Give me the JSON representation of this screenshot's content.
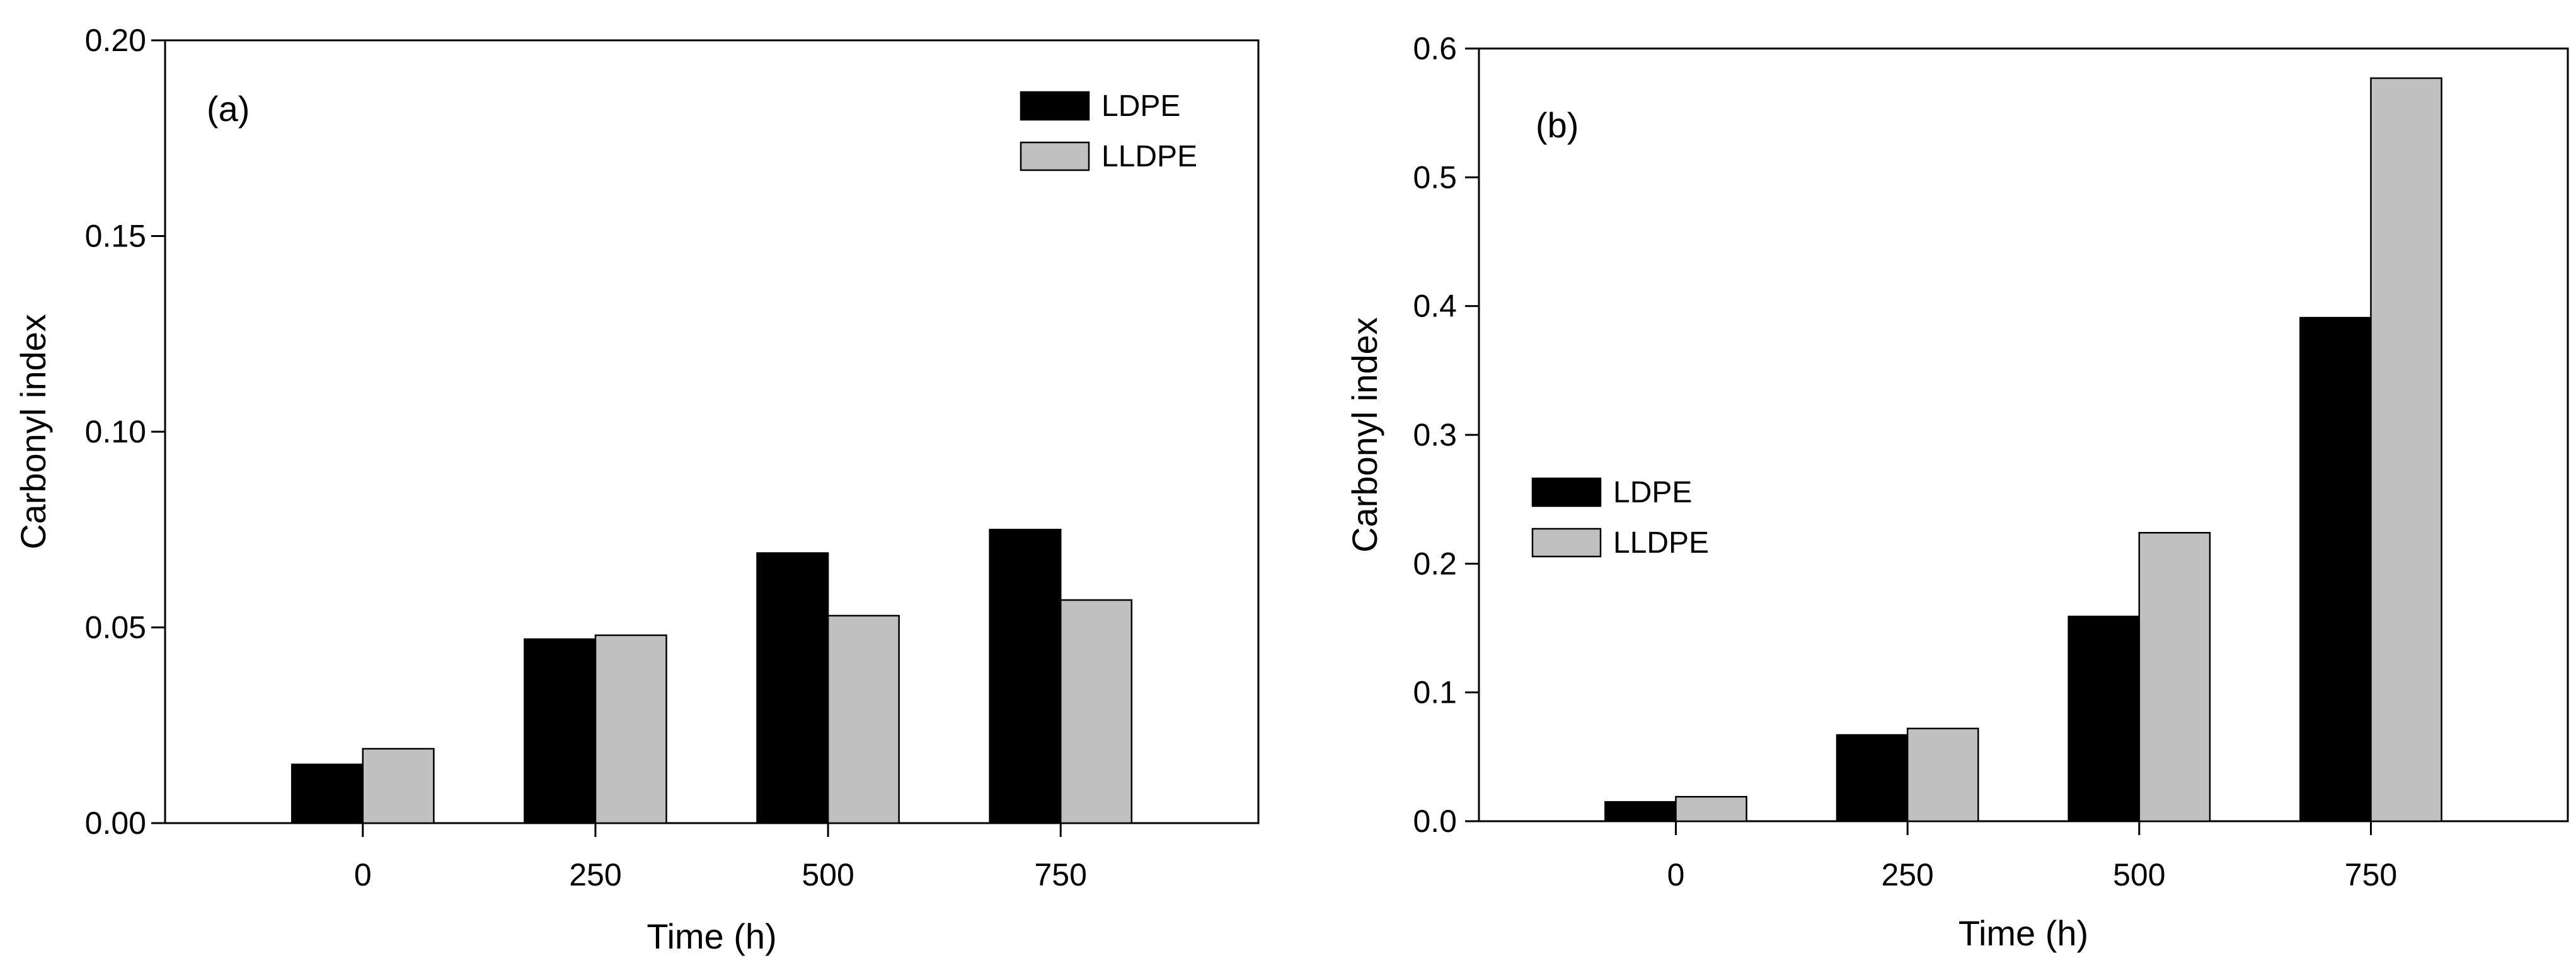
{
  "chart_data": [
    {
      "panel_label": "(a)",
      "type": "bar",
      "categories": [
        "0",
        "250",
        "500",
        "750"
      ],
      "series": [
        {
          "name": "LDPE",
          "color": "#000000",
          "values": [
            0.015,
            0.047,
            0.069,
            0.075
          ]
        },
        {
          "name": "LLDPE",
          "color": "#c0c0c0",
          "values": [
            0.019,
            0.048,
            0.053,
            0.057
          ]
        }
      ],
      "xlabel": "Time (h)",
      "ylabel": "Carbonyl index",
      "ylim": [
        0,
        0.2
      ],
      "yticks": [
        "0.00",
        "0.05",
        "0.10",
        "0.15",
        "0.20"
      ],
      "legend": "top-right",
      "grid": false
    },
    {
      "panel_label": "(b)",
      "type": "bar",
      "categories": [
        "0",
        "250",
        "500",
        "750"
      ],
      "series": [
        {
          "name": "LDPE",
          "color": "#000000",
          "values": [
            0.015,
            0.067,
            0.159,
            0.391
          ]
        },
        {
          "name": "LLDPE",
          "color": "#c0c0c0",
          "values": [
            0.019,
            0.072,
            0.224,
            0.577
          ]
        }
      ],
      "xlabel": "Time (h)",
      "ylabel": "Carbonyl index",
      "ylim": [
        0,
        0.6
      ],
      "yticks": [
        "0.0",
        "0.1",
        "0.2",
        "0.3",
        "0.4",
        "0.5",
        "0.6"
      ],
      "legend": "center-left",
      "grid": false
    }
  ]
}
